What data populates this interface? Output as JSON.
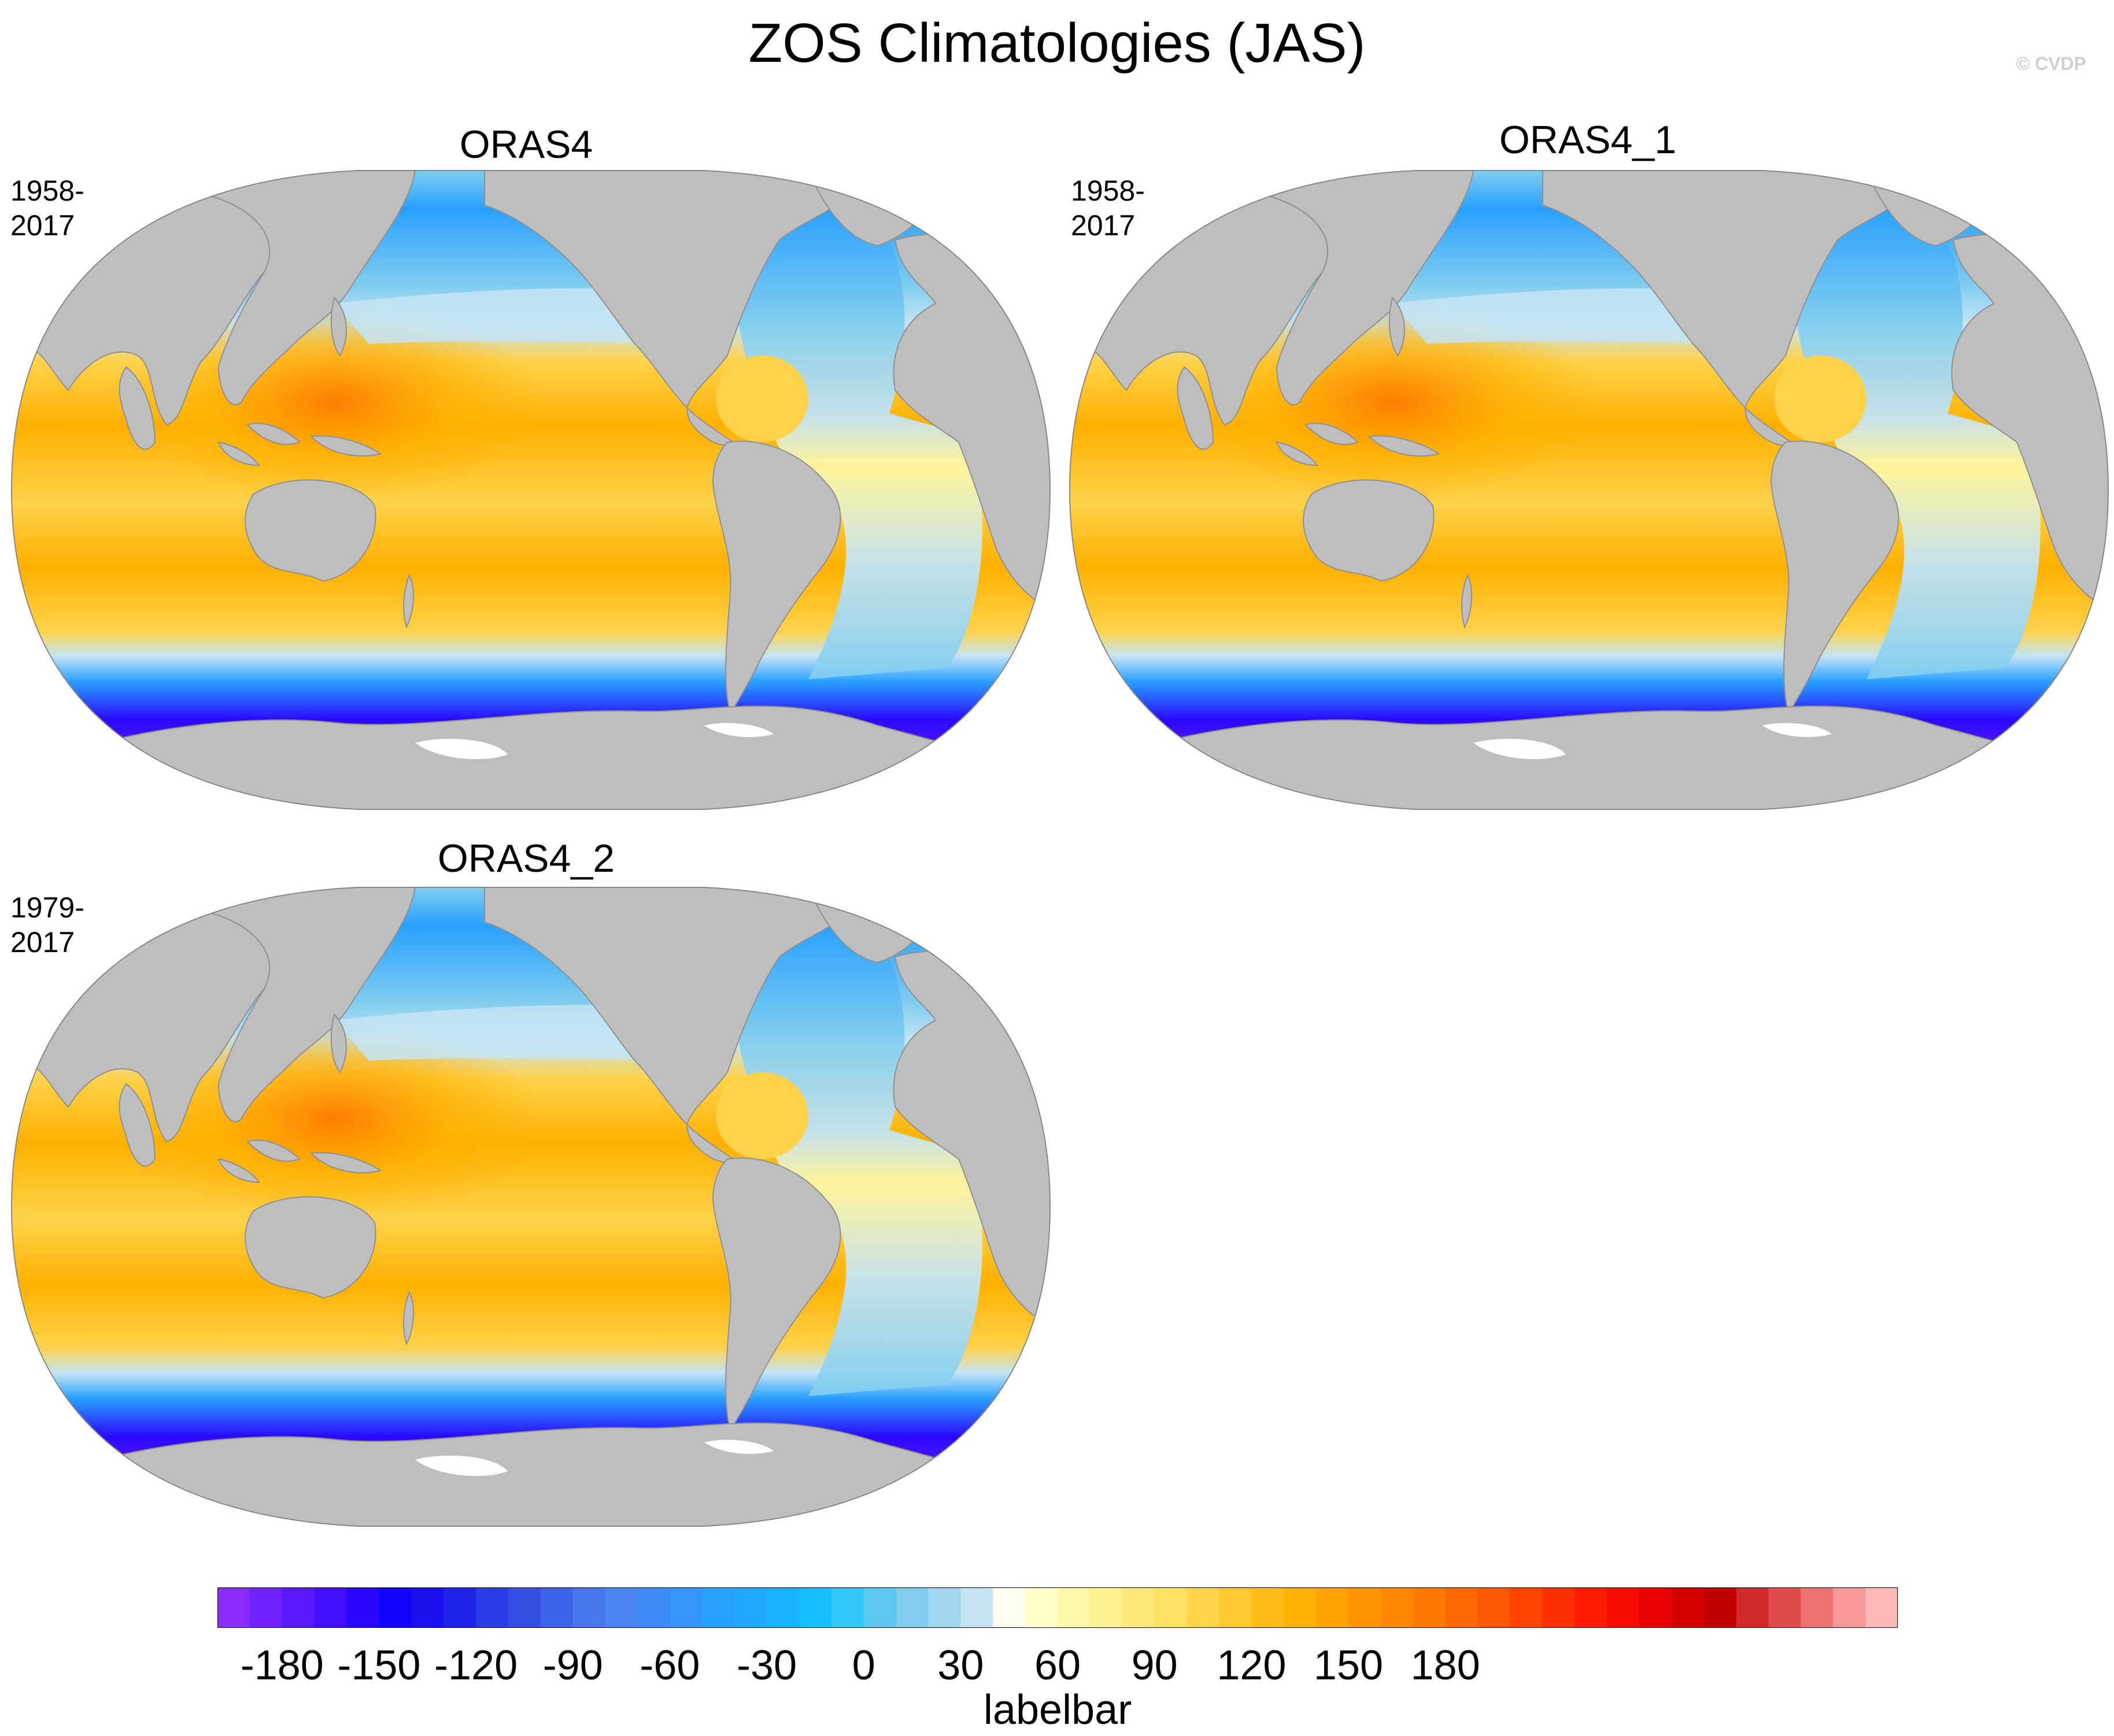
{
  "title": "ZOS Climatologies (JAS)",
  "credit": "© CVDP",
  "panels": [
    {
      "name": "ORAS4",
      "period": "1958-2017"
    },
    {
      "name": "ORAS4_1",
      "period": "1958-2017"
    },
    {
      "name": "ORAS4_2",
      "period": "1979-2017"
    }
  ],
  "colorbar": {
    "label": "labelbar",
    "ticks": [
      "-180",
      "-150",
      "-120",
      "-90",
      "-60",
      "-30",
      "0",
      "30",
      "60",
      "90",
      "120",
      "150",
      "180"
    ],
    "tick_values": [
      -180,
      -150,
      -120,
      -90,
      -60,
      -30,
      0,
      30,
      60,
      90,
      120,
      150,
      180
    ],
    "min": -200,
    "max": 210,
    "step": 10,
    "colors": [
      "#8a2cff",
      "#7222ff",
      "#5a18ff",
      "#4210ff",
      "#2a08ff",
      "#1204ff",
      "#1a10f0",
      "#1f24e8",
      "#2a3ce6",
      "#3450e4",
      "#3c64e8",
      "#4678ec",
      "#4a86f0",
      "#3e8cf6",
      "#3296fb",
      "#28a0ff",
      "#20aaff",
      "#18b4ff",
      "#14c0ff",
      "#30c6f8",
      "#5ac8f0",
      "#80cdee",
      "#a2d6f0",
      "#c4e4f4",
      "#fffff0",
      "#ffffc8",
      "#fff8a8",
      "#fff090",
      "#ffe878",
      "#ffe060",
      "#ffd448",
      "#ffc830",
      "#ffbc18",
      "#ffb000",
      "#ffa200",
      "#ff9400",
      "#ff8600",
      "#ff7800",
      "#ff6800",
      "#ff5600",
      "#ff4400",
      "#ff3000",
      "#ff1c00",
      "#f80c00",
      "#e80000",
      "#d40000",
      "#c00000",
      "#d22a2a",
      "#e04c4c",
      "#ec7272",
      "#f89898",
      "#ffb8b8"
    ]
  },
  "map_colors": {
    "land": "#bebebe",
    "coast": "#909090",
    "antarctic_ice": "#ffffff",
    "warm_core": "#ff7a00",
    "warm": "#ffb000",
    "warm_light": "#ffd24a",
    "pale_yellow": "#fff6a0",
    "pale_blue": "#c4e4f4",
    "light_blue": "#80cdee",
    "mid_blue": "#28a0ff",
    "deep_blue": "#2a08ff",
    "purple": "#6a1eff"
  }
}
